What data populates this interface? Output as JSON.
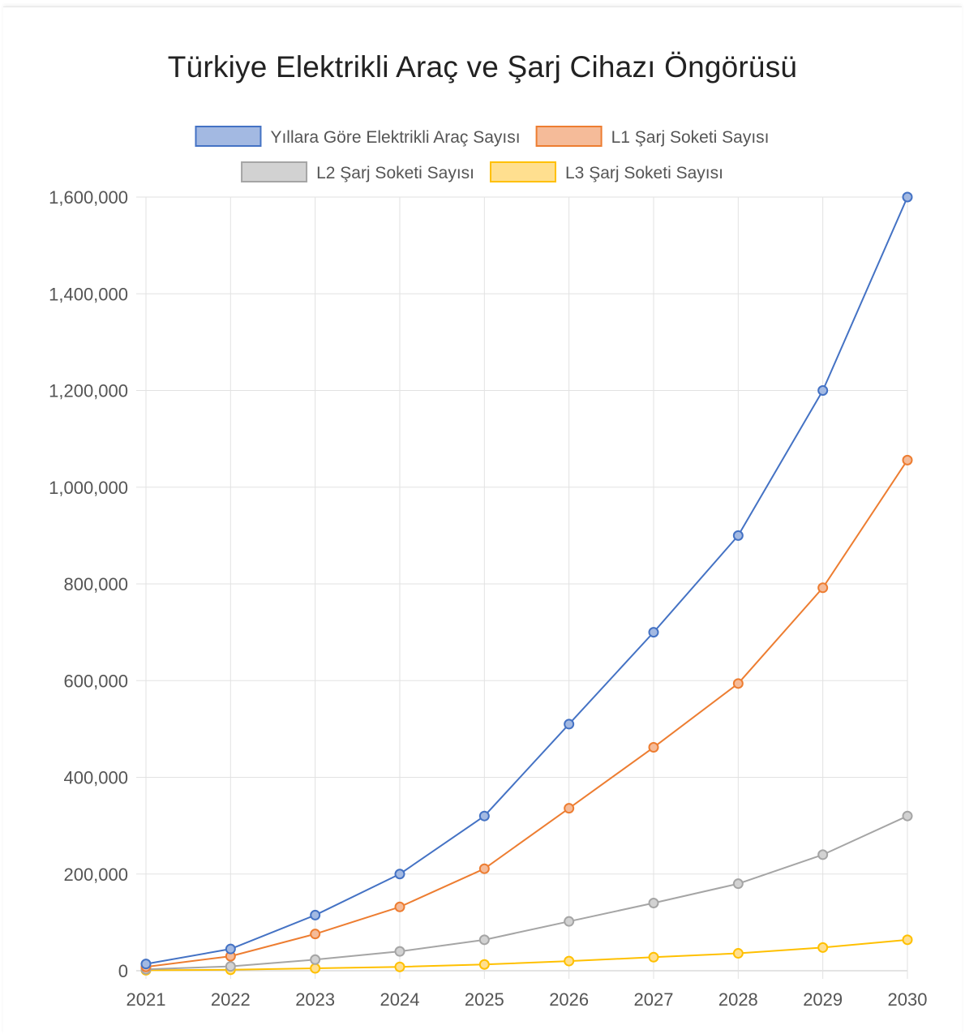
{
  "chart_data": {
    "type": "line",
    "title": "Türkiye Elektrikli Araç ve Şarj Cihazı Öngörüsü",
    "x": [
      "2021",
      "2022",
      "2023",
      "2024",
      "2025",
      "2026",
      "2027",
      "2028",
      "2029",
      "2030"
    ],
    "ylim": [
      0,
      1600000
    ],
    "y_ticks": [
      "0",
      "200,000",
      "400,000",
      "600,000",
      "800,000",
      "1,000,000",
      "1,200,000",
      "1,400,000",
      "1,600,000"
    ],
    "grid": true,
    "legend_position": "top",
    "series": [
      {
        "name": "Yıllara Göre Elektrikli Araç Sayısı",
        "color": "#4472c4",
        "fill": "#a3b9e2",
        "values": [
          14000,
          45000,
          115000,
          200000,
          320000,
          510000,
          700000,
          900000,
          1200000,
          1600000
        ]
      },
      {
        "name": "L1 Şarj Soketi Sayısı",
        "color": "#ed7d31",
        "fill": "#f5bb99",
        "values": [
          8000,
          30000,
          76000,
          132000,
          211000,
          336000,
          462000,
          594000,
          792000,
          1056000
        ]
      },
      {
        "name": "L2 Şarj Soketi Sayısı",
        "color": "#a5a5a5",
        "fill": "#d2d2d2",
        "values": [
          3000,
          9000,
          23000,
          40000,
          64000,
          102000,
          140000,
          180000,
          240000,
          320000
        ]
      },
      {
        "name": "L3 Şarj Soketi Sayısı",
        "color": "#ffc000",
        "fill": "#ffdf8f",
        "values": [
          1000,
          2000,
          5000,
          8000,
          13000,
          20000,
          28000,
          36000,
          48000,
          64000
        ]
      }
    ]
  }
}
